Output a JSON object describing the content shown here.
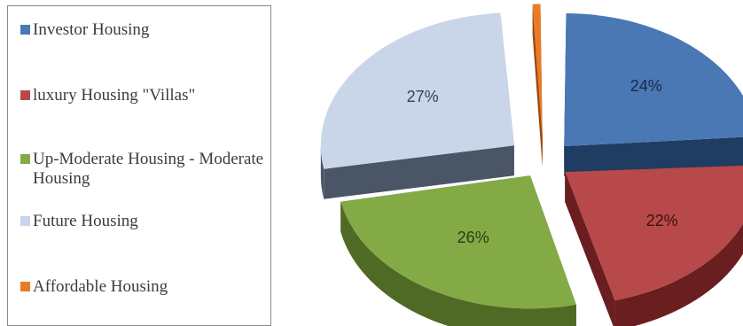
{
  "chart_data": {
    "type": "pie",
    "style": "3d-exploded",
    "legend_position": "left",
    "slices": [
      {
        "name": "Investor Housing",
        "value": 24,
        "label": "24%",
        "color": "#4a78b5",
        "side_color": "#1f3c62",
        "label_color": "#1b2a44"
      },
      {
        "name": "luxury Housing \"Villas\"",
        "value": 22,
        "label": "22%",
        "color": "#b8494a",
        "side_color": "#6a1e1f",
        "label_color": "#3a1010"
      },
      {
        "name": "Up-Moderate Housing - Moderate Housing",
        "value": 26,
        "label": "26%",
        "color": "#84aa45",
        "side_color": "#4e6a24",
        "label_color": "#2b3a14"
      },
      {
        "name": "Future Housing",
        "value": 27,
        "label": "27%",
        "color": "#c9d6ea",
        "side_color": "#4a5566",
        "label_color": "#3a4150"
      },
      {
        "name": "Affordable Housing",
        "value": 0.98,
        "label": "0.98%",
        "color": "#ea7b26",
        "side_color": "#9a4a10",
        "label_color": "#3a3a3a"
      }
    ]
  }
}
